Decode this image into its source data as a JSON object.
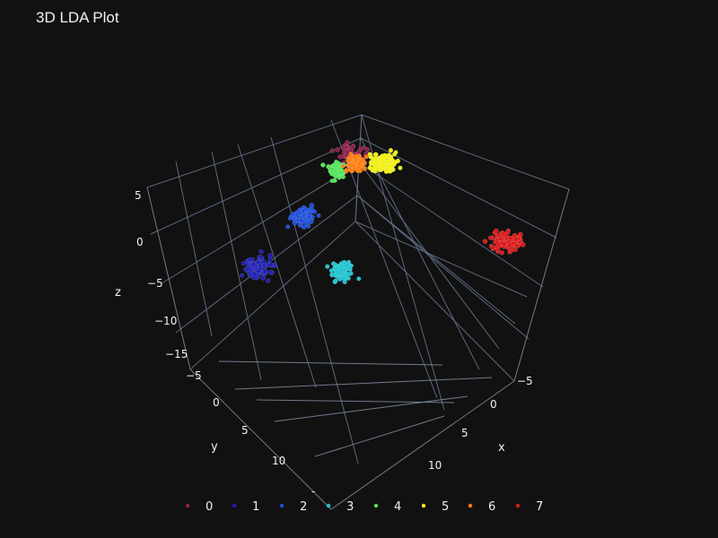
{
  "chart_data": {
    "type": "scatter",
    "title": "3D LDA Plot",
    "dimensions": 3,
    "axes": {
      "x": {
        "label": "x",
        "ticks": [
          "−5",
          "0",
          "5",
          "10"
        ]
      },
      "y": {
        "label": "y",
        "ticks": [
          "−5",
          "0",
          "5",
          "10"
        ]
      },
      "z": {
        "label": "z",
        "ticks": [
          "5",
          "0",
          "−5",
          "−10",
          "−15"
        ]
      }
    },
    "legend": [
      "0",
      "1",
      "2",
      "3",
      "4",
      "5",
      "6",
      "7"
    ],
    "series": [
      {
        "name": "0",
        "color": "#8e1f4b",
        "center": [
          1.0,
          0.5,
          7.0
        ],
        "approx_points": 70
      },
      {
        "name": "1",
        "color": "#1f1fb0",
        "center": [
          -9.0,
          7.0,
          -6.5
        ],
        "approx_points": 120
      },
      {
        "name": "2",
        "color": "#1f4ed8",
        "center": [
          -5.5,
          6.0,
          -2.5
        ],
        "approx_points": 90
      },
      {
        "name": "3",
        "color": "#21c4cf",
        "center": [
          -4.0,
          10.0,
          -8.5
        ],
        "approx_points": 90
      },
      {
        "name": "4",
        "color": "#54e45a",
        "center": [
          -1.5,
          1.5,
          6.0
        ],
        "approx_points": 60
      },
      {
        "name": "5",
        "color": "#f0ef17",
        "center": [
          3.5,
          -1.5,
          6.5
        ],
        "approx_points": 100
      },
      {
        "name": "6",
        "color": "#ff7d12",
        "center": [
          0.5,
          0.0,
          6.0
        ],
        "approx_points": 80
      },
      {
        "name": "7",
        "color": "#d81b1b",
        "center": [
          12.0,
          1.0,
          1.5
        ],
        "approx_points": 110
      }
    ]
  }
}
